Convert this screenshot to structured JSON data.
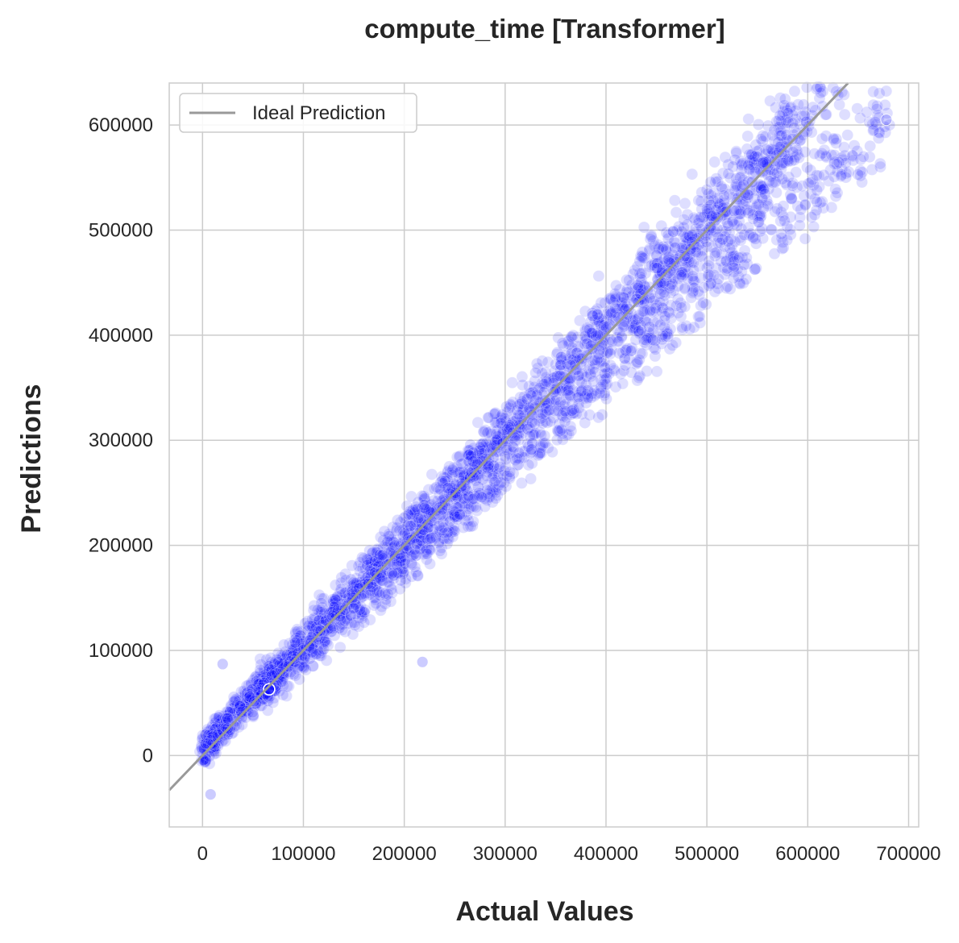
{
  "chart_data": {
    "type": "scatter",
    "title": "compute_time [Transformer]",
    "xlabel": "Actual Values",
    "ylabel": "Predictions",
    "xlim": [
      -33000,
      710000
    ],
    "ylim": [
      -68000,
      640000
    ],
    "xticks": [
      0,
      100000,
      200000,
      300000,
      400000,
      500000,
      600000,
      700000
    ],
    "yticks": [
      0,
      100000,
      200000,
      300000,
      400000,
      500000,
      600000
    ],
    "grid": true,
    "legend": {
      "placement": "top-left",
      "entries": [
        "Ideal Prediction"
      ]
    },
    "colors": {
      "points": "#0000ff",
      "ideal_line": "#999999",
      "grid": "#cccccc",
      "frame": "#cccccc"
    },
    "series": [
      {
        "type": "scatter",
        "bands": [
          {
            "x_range": [
              0,
              680000
            ],
            "slope": 1.02,
            "intercept": 10000
          },
          {
            "x_range": [
              0,
              600000
            ],
            "slope": 0.985,
            "intercept": 2000
          },
          {
            "x_range": [
              50000,
              680000
            ],
            "slope": 0.89,
            "intercept": 3000
          }
        ],
        "notable_points": [
          {
            "x": 20000,
            "y": 87000
          },
          {
            "x": 218000,
            "y": 89000
          },
          {
            "x": 66000,
            "y": 63000
          },
          {
            "x": 8000,
            "y": -37000
          },
          {
            "x": 678000,
            "y": 605000
          }
        ]
      },
      {
        "name": "Ideal Prediction",
        "type": "line",
        "x": [
          -33000,
          640000
        ],
        "y": [
          -33000,
          640000
        ]
      }
    ]
  }
}
